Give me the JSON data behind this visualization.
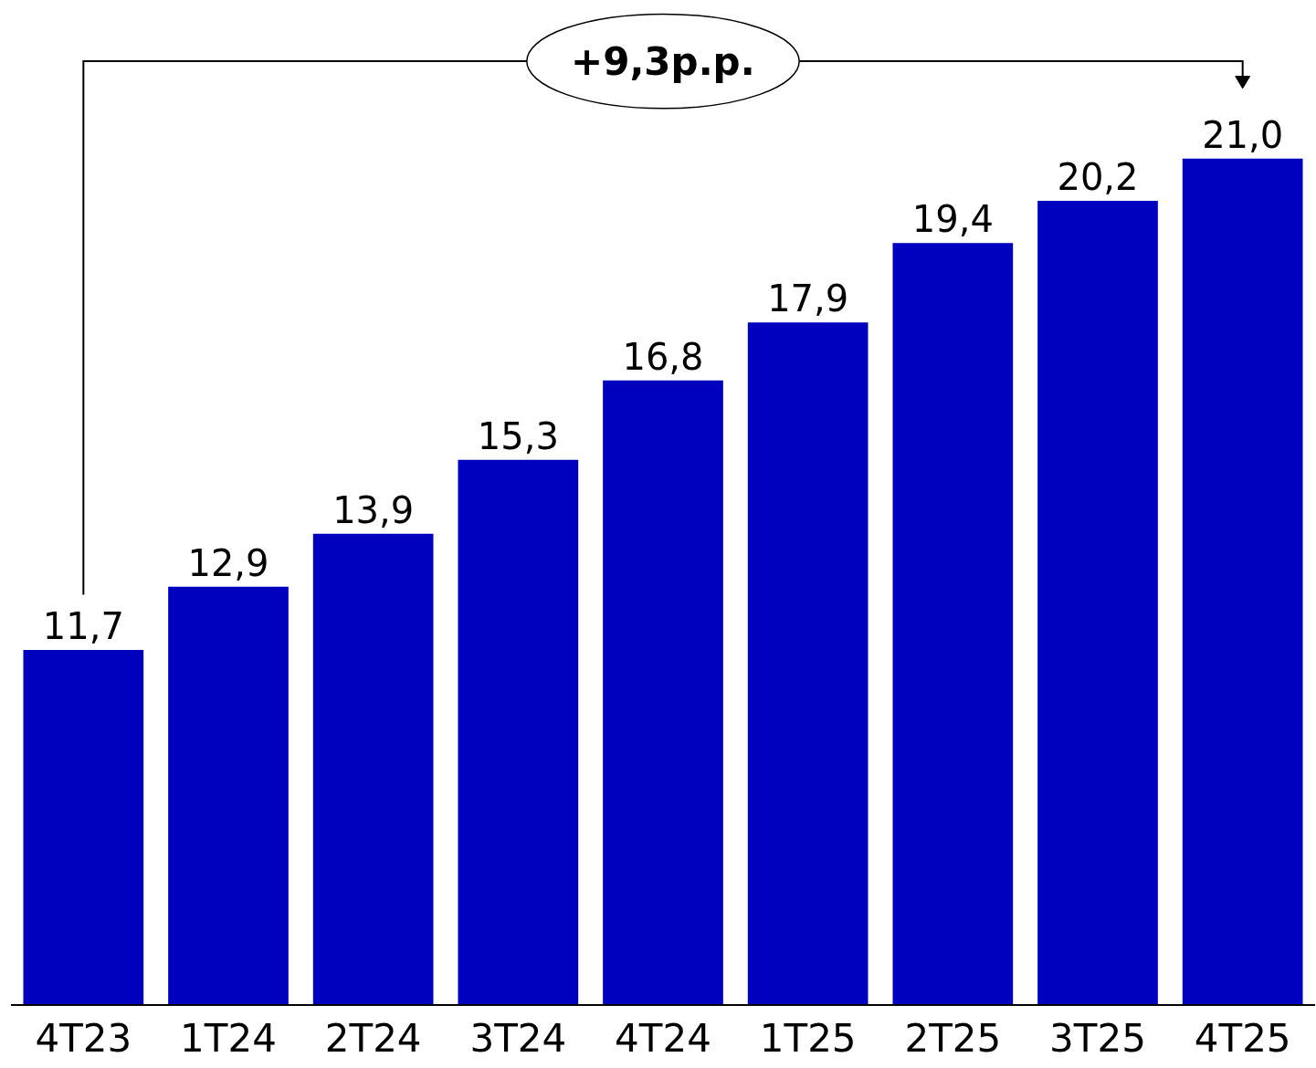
{
  "chart_data": {
    "type": "bar",
    "categories": [
      "4T23",
      "1T24",
      "2T24",
      "3T24",
      "4T24",
      "1T25",
      "2T25",
      "3T25",
      "4T25"
    ],
    "values": [
      11.7,
      12.9,
      13.9,
      15.3,
      16.8,
      17.9,
      19.4,
      20.2,
      21.0
    ],
    "value_labels": [
      "11,7",
      "12,9",
      "13,9",
      "15,3",
      "16,8",
      "17,9",
      "19,4",
      "20,2",
      "21,0"
    ],
    "color": "#0000bf",
    "ylim": [
      5,
      24
    ],
    "tick_labels": "x",
    "grid": false,
    "legend": false,
    "annotations": [
      "+9,3p.p."
    ]
  }
}
